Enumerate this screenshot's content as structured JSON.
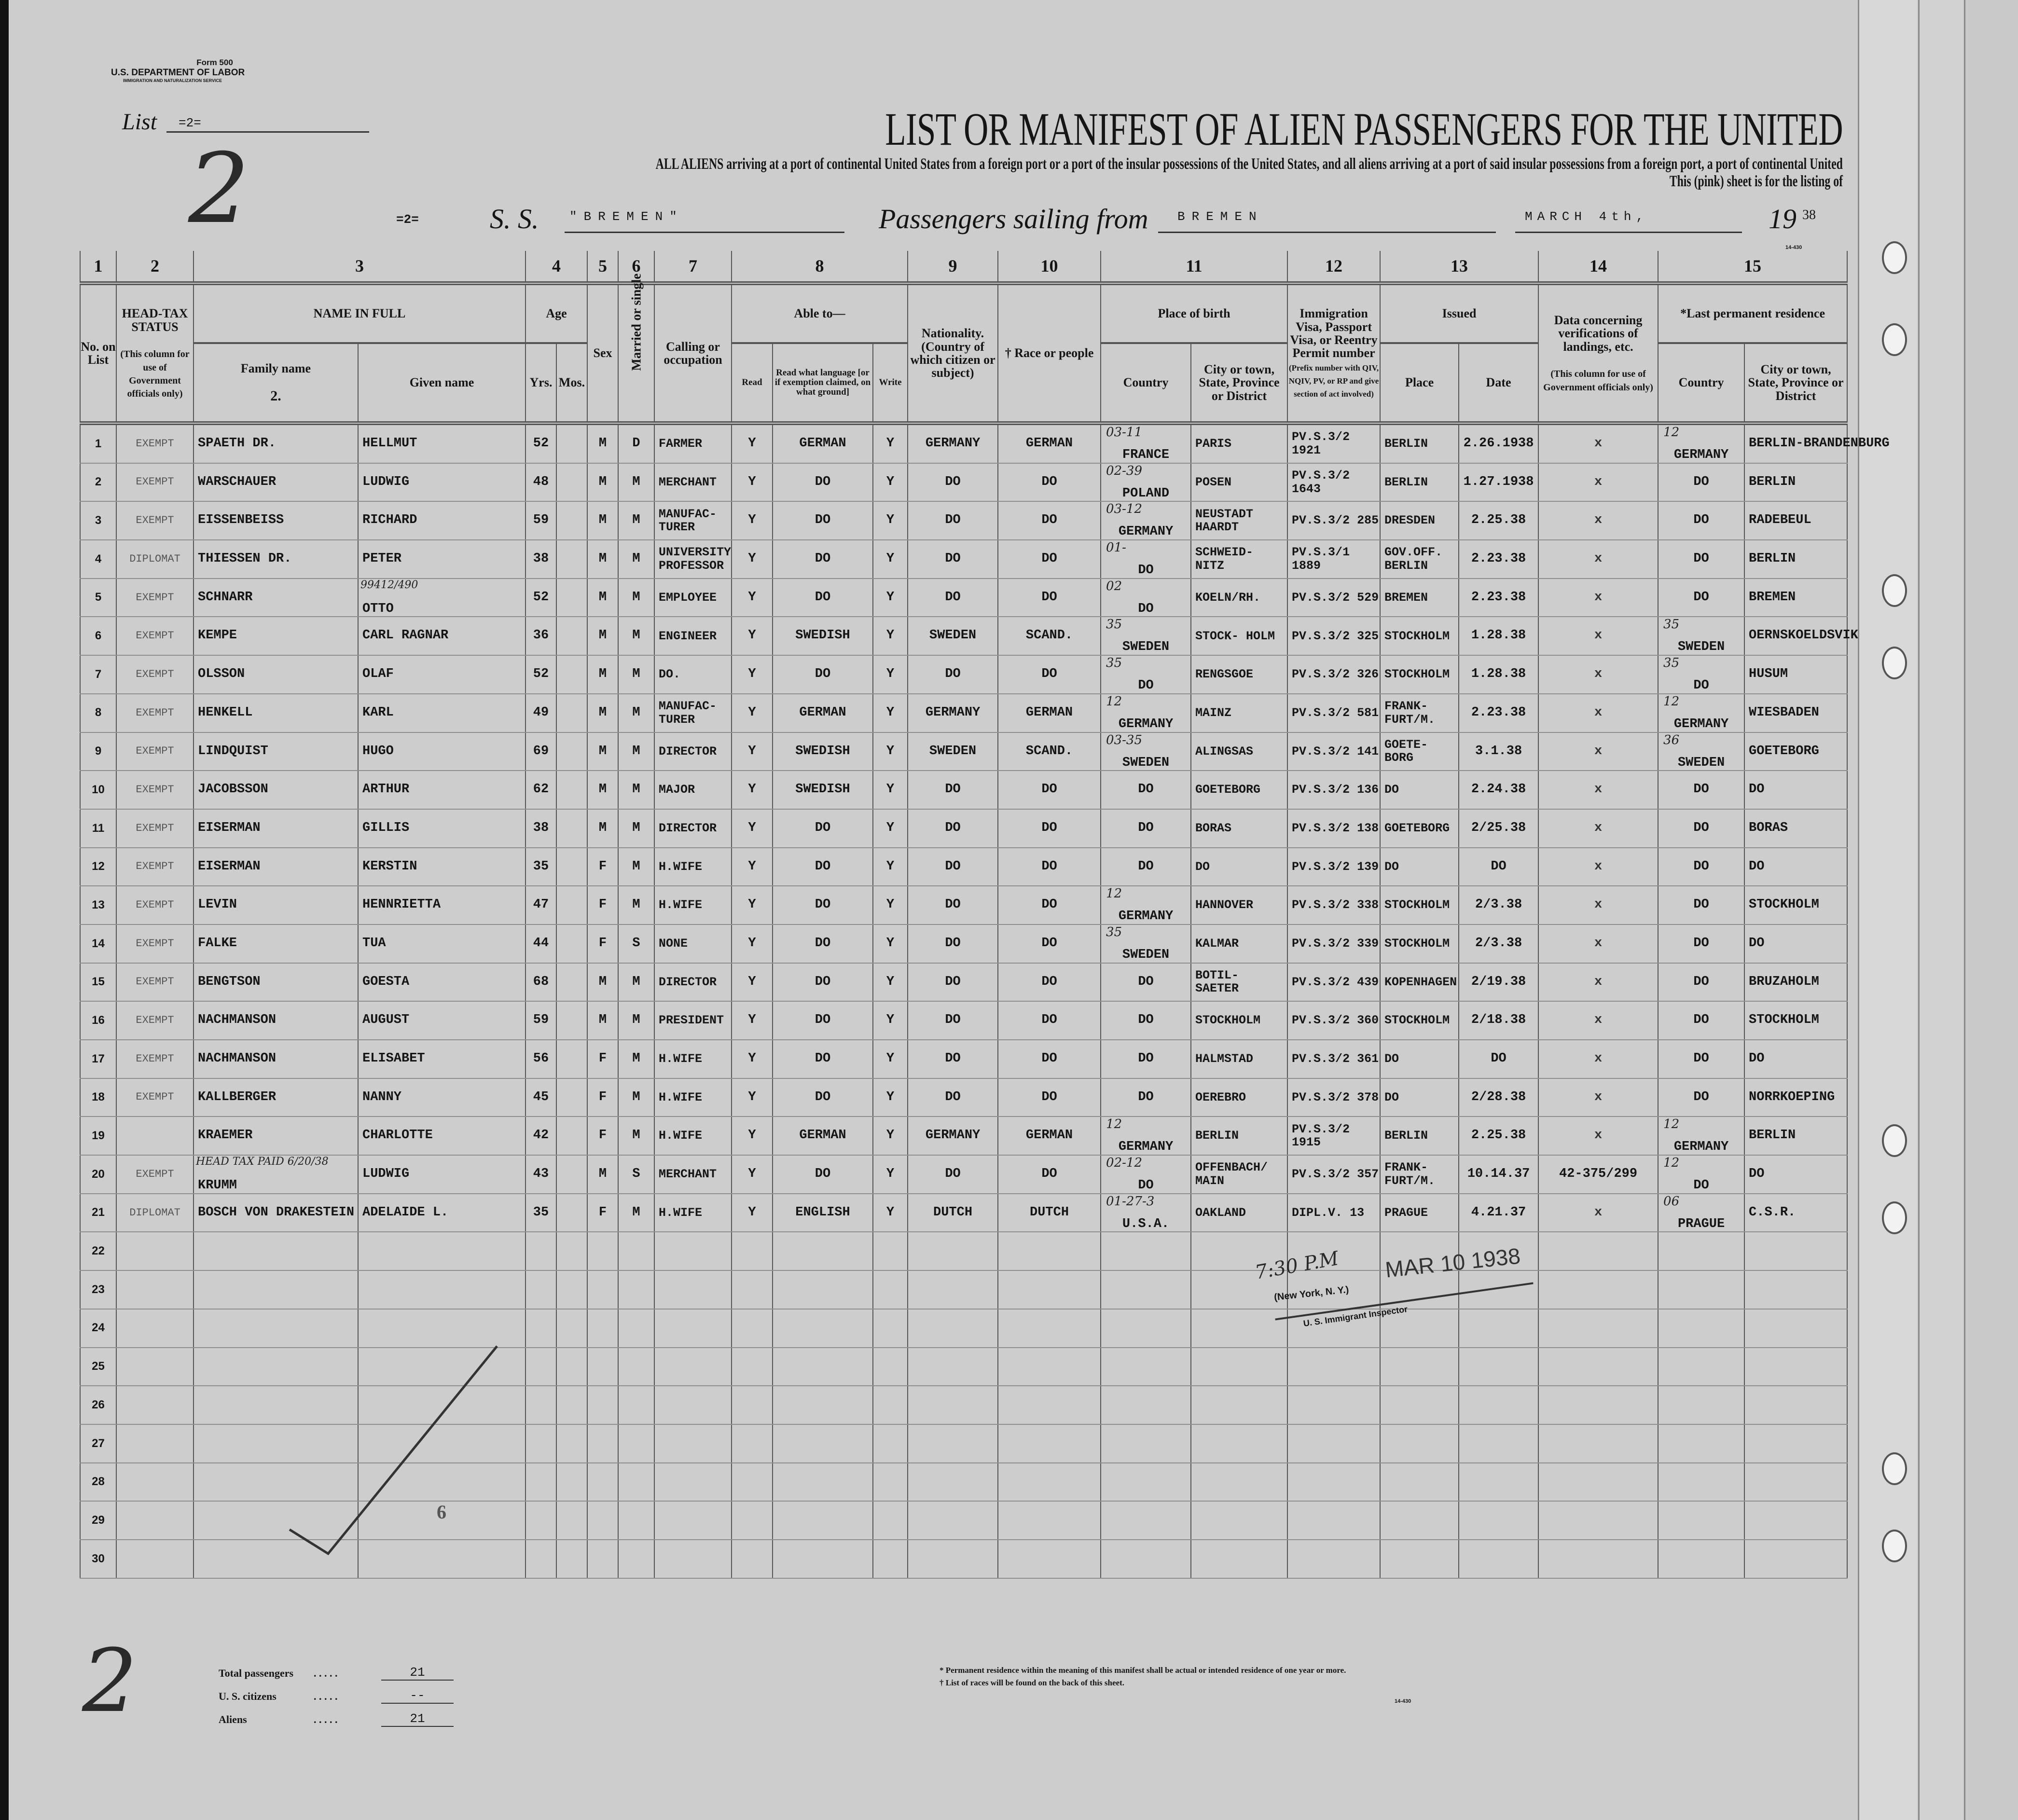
{
  "form": {
    "form_no": "Form 500",
    "department": "U.S. DEPARTMENT OF LABOR",
    "service": "IMMIGRATION AND NATURALIZATION SERVICE"
  },
  "list": {
    "label": "List",
    "value": "=2=",
    "handwritten": "2"
  },
  "title": "LIST OR MANIFEST OF ALIEN PASSENGERS FOR THE UNITED",
  "subtitle_line1": "ALL ALIENS arriving at a port of continental United States from a foreign port or a port of the insular possessions of the United States, and all aliens arriving at a port of said insular possessions from a foreign port, a port of continental United",
  "subtitle_line2": "This (pink) sheet is for the listing of",
  "voyage": {
    "sheet": "=2=",
    "ss_label": "S. S.",
    "ship": "\"BREMEN\"",
    "sailing_label": "Passengers sailing from",
    "port": "BREMEN",
    "date": "MARCH 4th,",
    "year_prefix": "19",
    "year_suffix": "38",
    "form_code": "14-430"
  },
  "columns": {
    "numbers": [
      "1",
      "2",
      "3",
      "4",
      "5",
      "6",
      "7",
      "8",
      "9",
      "10",
      "11",
      "12",
      "13",
      "14",
      "15"
    ],
    "no_on_list": "No. on List",
    "head_tax": "HEAD-TAX STATUS",
    "head_tax_note": "(This column for use of Government officials only)",
    "name_in_full": "NAME IN FULL",
    "family_name": "Family name",
    "family_name_sub": "2.",
    "given_name": "Given name",
    "age": "Age",
    "yrs": "Yrs.",
    "mos": "Mos.",
    "sex": "Sex",
    "married": "Married or single",
    "calling": "Calling or occupation",
    "able_to": "Able to—",
    "read": "Read",
    "read_language": "Read what language [or if exemption claimed, on what ground]",
    "write": "Write",
    "nationality": "Nationality. (Country of which citizen or subject)",
    "race": "† Race or people",
    "place_of_birth": "Place of birth",
    "country": "Country",
    "city": "City or town, State, Province or District",
    "visa": "Immigration Visa, Passport Visa, or Reentry Permit number",
    "visa_note": "(Prefix number with QIV, NQIV, PV, or RP and give section of act involved)",
    "issued": "Issued",
    "place": "Place",
    "date": "Date",
    "verification": "Data concerning verifications of landings, etc.",
    "verification_note": "(This column for use of Government officials only)",
    "last_residence": "*Last permanent residence",
    "res_country": "Country",
    "res_city": "City or town, State, Province or District"
  },
  "rows": [
    {
      "no": "1",
      "head_tax": "EXEMPT",
      "family": "SPAETH DR.",
      "given": "HELLMUT",
      "yrs": "52",
      "mos": "",
      "sex": "M",
      "married": "D",
      "calling": "FARMER",
      "read": "Y",
      "language": "GERMAN",
      "write": "Y",
      "nationality": "GERMANY",
      "race": "GERMAN",
      "birth_country": "FRANCE",
      "birth_city": "PARIS",
      "birth_code": "03-11",
      "visa": "PV.S.3/2 1921",
      "issued_place": "BERLIN",
      "issued_date": "2.26.1938",
      "verification": "x",
      "res_country": "GERMANY",
      "res_city": "BERLIN-BRANDENBURG",
      "res_code": "12"
    },
    {
      "no": "2",
      "head_tax": "EXEMPT",
      "family": "WARSCHAUER",
      "given": "LUDWIG",
      "yrs": "48",
      "mos": "",
      "sex": "M",
      "married": "M",
      "calling": "MERCHANT",
      "read": "Y",
      "language": "DO",
      "write": "Y",
      "nationality": "DO",
      "race": "DO",
      "birth_country": "POLAND",
      "birth_city": "POSEN",
      "birth_code": "02-39",
      "visa": "PV.S.3/2 1643",
      "issued_place": "BERLIN",
      "issued_date": "1.27.1938",
      "verification": "x",
      "res_country": "DO",
      "res_city": "BERLIN"
    },
    {
      "no": "3",
      "head_tax": "EXEMPT",
      "family": "EISSENBEISS",
      "given": "RICHARD",
      "yrs": "59",
      "mos": "",
      "sex": "M",
      "married": "M",
      "calling": "MANUFAC- TURER",
      "read": "Y",
      "language": "DO",
      "write": "Y",
      "nationality": "DO",
      "race": "DO",
      "birth_country": "GERMANY",
      "birth_city": "NEUSTADT HAARDT",
      "birth_code": "03-12",
      "visa": "PV.S.3/2 285",
      "issued_place": "DRESDEN",
      "issued_date": "2.25.38",
      "verification": "x",
      "res_country": "DO",
      "res_city": "RADEBEUL"
    },
    {
      "no": "4",
      "head_tax": "DIPLOMAT",
      "family": "THIESSEN DR.",
      "given": "PETER",
      "yrs": "38",
      "mos": "",
      "sex": "M",
      "married": "M",
      "calling": "UNIVERSITY PROFESSOR",
      "read": "Y",
      "language": "DO",
      "write": "Y",
      "nationality": "DO",
      "race": "DO",
      "birth_country": "DO",
      "birth_city": "SCHWEID- NITZ",
      "birth_code": "01-",
      "visa": "PV.S.3/1 1889",
      "issued_place": "GOV.OFF. BERLIN",
      "issued_date": "2.23.38",
      "verification": "x",
      "res_country": "DO",
      "res_city": "BERLIN"
    },
    {
      "no": "5",
      "head_tax": "EXEMPT",
      "family": "SCHNARR",
      "given": "OTTO",
      "given_note": "99412/490",
      "yrs": "52",
      "mos": "",
      "sex": "M",
      "married": "M",
      "calling": "EMPLOYEE",
      "read": "Y",
      "language": "DO",
      "write": "Y",
      "nationality": "DO",
      "race": "DO",
      "birth_country": "DO",
      "birth_city": "KOELN/RH.",
      "birth_code": "02",
      "visa": "PV.S.3/2 529",
      "issued_place": "BREMEN",
      "issued_date": "2.23.38",
      "verification": "x",
      "res_country": "DO",
      "res_city": "BREMEN"
    },
    {
      "no": "6",
      "head_tax": "EXEMPT",
      "family": "KEMPE",
      "given": "CARL RAGNAR",
      "yrs": "36",
      "mos": "",
      "sex": "M",
      "married": "M",
      "calling": "ENGINEER",
      "read": "Y",
      "language": "SWEDISH",
      "write": "Y",
      "nationality": "SWEDEN",
      "race": "SCAND.",
      "birth_country": "SWEDEN",
      "birth_city": "STOCK- HOLM",
      "birth_code": "35",
      "visa": "PV.S.3/2 325",
      "issued_place": "STOCKHOLM",
      "issued_date": "1.28.38",
      "verification": "x",
      "res_country": "SWEDEN",
      "res_city": "OERNSKOELDSVIK",
      "res_code": "35"
    },
    {
      "no": "7",
      "head_tax": "EXEMPT",
      "family": "OLSSON",
      "given": "OLAF",
      "yrs": "52",
      "mos": "",
      "sex": "M",
      "married": "M",
      "calling": "DO.",
      "read": "Y",
      "language": "DO",
      "write": "Y",
      "nationality": "DO",
      "race": "DO",
      "birth_country": "DO",
      "birth_city": "RENGSGOE",
      "birth_code": "35",
      "visa": "PV.S.3/2 326",
      "issued_place": "STOCKHOLM",
      "issued_date": "1.28.38",
      "verification": "x",
      "res_country": "DO",
      "res_city": "HUSUM",
      "res_code": "35"
    },
    {
      "no": "8",
      "head_tax": "EXEMPT",
      "family": "HENKELL",
      "given": "KARL",
      "yrs": "49",
      "mos": "",
      "sex": "M",
      "married": "M",
      "calling": "MANUFAC- TURER",
      "read": "Y",
      "language": "GERMAN",
      "write": "Y",
      "nationality": "GERMANY",
      "race": "GERMAN",
      "birth_country": "GERMANY",
      "birth_city": "MAINZ",
      "birth_code": "12",
      "visa": "PV.S.3/2 581",
      "issued_place": "FRANK- FURT/M.",
      "issued_date": "2.23.38",
      "verification": "x",
      "res_country": "GERMANY",
      "res_city": "WIESBADEN",
      "res_code": "12"
    },
    {
      "no": "9",
      "head_tax": "EXEMPT",
      "family": "LINDQUIST",
      "given": "HUGO",
      "yrs": "69",
      "mos": "",
      "sex": "M",
      "married": "M",
      "calling": "DIRECTOR",
      "read": "Y",
      "language": "SWEDISH",
      "write": "Y",
      "nationality": "SWEDEN",
      "race": "SCAND.",
      "birth_country": "SWEDEN",
      "birth_city": "ALINGSAS",
      "birth_code": "03-35",
      "visa": "PV.S.3/2 141",
      "issued_place": "GOETE- BORG",
      "issued_date": "3.1.38",
      "verification": "x",
      "res_country": "SWEDEN",
      "res_city": "GOETEBORG",
      "res_code": "36"
    },
    {
      "no": "10",
      "head_tax": "EXEMPT",
      "family": "JACOBSSON",
      "given": "ARTHUR",
      "yrs": "62",
      "mos": "",
      "sex": "M",
      "married": "M",
      "calling": "MAJOR",
      "read": "Y",
      "language": "SWEDISH",
      "write": "Y",
      "nationality": "DO",
      "race": "DO",
      "birth_country": "DO",
      "birth_city": "GOETEBORG",
      "visa": "PV.S.3/2 136",
      "issued_place": "DO",
      "issued_date": "2.24.38",
      "verification": "x",
      "res_country": "DO",
      "res_city": "DO"
    },
    {
      "no": "11",
      "head_tax": "EXEMPT",
      "family": "EISERMAN",
      "given": "GILLIS",
      "yrs": "38",
      "mos": "",
      "sex": "M",
      "married": "M",
      "calling": "DIRECTOR",
      "read": "Y",
      "language": "DO",
      "write": "Y",
      "nationality": "DO",
      "race": "DO",
      "birth_country": "DO",
      "birth_city": "BORAS",
      "visa": "PV.S.3/2 138",
      "issued_place": "GOETEBORG",
      "issued_date": "2/25.38",
      "verification": "x",
      "res_country": "DO",
      "res_city": "BORAS"
    },
    {
      "no": "12",
      "head_tax": "EXEMPT",
      "family": "EISERMAN",
      "given": "KERSTIN",
      "yrs": "35",
      "mos": "",
      "sex": "F",
      "married": "M",
      "calling": "H.WIFE",
      "read": "Y",
      "language": "DO",
      "write": "Y",
      "nationality": "DO",
      "race": "DO",
      "birth_country": "DO",
      "birth_city": "DO",
      "visa": "PV.S.3/2 139",
      "issued_place": "DO",
      "issued_date": "DO",
      "verification": "x",
      "res_country": "DO",
      "res_city": "DO"
    },
    {
      "no": "13",
      "head_tax": "EXEMPT",
      "family": "LEVIN",
      "given": "HENNRIETTA",
      "yrs": "47",
      "mos": "",
      "sex": "F",
      "married": "M",
      "calling": "H.WIFE",
      "read": "Y",
      "language": "DO",
      "write": "Y",
      "nationality": "DO",
      "race": "DO",
      "birth_country": "GERMANY",
      "birth_city": "HANNOVER",
      "birth_code": "12",
      "visa": "PV.S.3/2 338",
      "issued_place": "STOCKHOLM",
      "issued_date": "2/3.38",
      "verification": "x",
      "res_country": "DO",
      "res_city": "STOCKHOLM"
    },
    {
      "no": "14",
      "head_tax": "EXEMPT",
      "family": "FALKE",
      "given": "TUA",
      "yrs": "44",
      "mos": "",
      "sex": "F",
      "married": "S",
      "calling": "NONE",
      "read": "Y",
      "language": "DO",
      "write": "Y",
      "nationality": "DO",
      "race": "DO",
      "birth_country": "SWEDEN",
      "birth_city": "KALMAR",
      "birth_code": "35",
      "visa": "PV.S.3/2 339",
      "issued_place": "STOCKHOLM",
      "issued_date": "2/3.38",
      "verification": "x",
      "res_country": "DO",
      "res_city": "DO"
    },
    {
      "no": "15",
      "head_tax": "EXEMPT",
      "family": "BENGTSON",
      "given": "GOESTA",
      "yrs": "68",
      "mos": "",
      "sex": "M",
      "married": "M",
      "calling": "DIRECTOR",
      "read": "Y",
      "language": "DO",
      "write": "Y",
      "nationality": "DO",
      "race": "DO",
      "birth_country": "DO",
      "birth_city": "BOTIL- SAETER",
      "visa": "PV.S.3/2 439",
      "issued_place": "KOPENHAGEN",
      "issued_date": "2/19.38",
      "verification": "x",
      "res_country": "DO",
      "res_city": "BRUZAHOLM"
    },
    {
      "no": "16",
      "head_tax": "EXEMPT",
      "family": "NACHMANSON",
      "given": "AUGUST",
      "yrs": "59",
      "mos": "",
      "sex": "M",
      "married": "M",
      "calling": "PRESIDENT",
      "read": "Y",
      "language": "DO",
      "write": "Y",
      "nationality": "DO",
      "race": "DO",
      "birth_country": "DO",
      "birth_city": "STOCKHOLM",
      "visa": "PV.S.3/2 360",
      "issued_place": "STOCKHOLM",
      "issued_date": "2/18.38",
      "verification": "x",
      "res_country": "DO",
      "res_city": "STOCKHOLM"
    },
    {
      "no": "17",
      "head_tax": "EXEMPT",
      "family": "NACHMANSON",
      "given": "ELISABET",
      "yrs": "56",
      "mos": "",
      "sex": "F",
      "married": "M",
      "calling": "H.WIFE",
      "read": "Y",
      "language": "DO",
      "write": "Y",
      "nationality": "DO",
      "race": "DO",
      "birth_country": "DO",
      "birth_city": "HALMSTAD",
      "visa": "PV.S.3/2 361",
      "issued_place": "DO",
      "issued_date": "DO",
      "verification": "x",
      "res_country": "DO",
      "res_city": "DO"
    },
    {
      "no": "18",
      "head_tax": "EXEMPT",
      "family": "KALLBERGER",
      "given": "NANNY",
      "yrs": "45",
      "mos": "",
      "sex": "F",
      "married": "M",
      "calling": "H.WIFE",
      "read": "Y",
      "language": "DO",
      "write": "Y",
      "nationality": "DO",
      "race": "DO",
      "birth_country": "DO",
      "birth_city": "OEREBRO",
      "visa": "PV.S.3/2 378",
      "issued_place": "DO",
      "issued_date": "2/28.38",
      "verification": "x",
      "res_country": "DO",
      "res_city": "NORRKOEPING"
    },
    {
      "no": "19",
      "head_tax": "",
      "family": "KRAEMER",
      "given": "CHARLOTTE",
      "yrs": "42",
      "mos": "",
      "sex": "F",
      "married": "M",
      "calling": "H.WIFE",
      "read": "Y",
      "language": "GERMAN",
      "write": "Y",
      "nationality": "GERMANY",
      "race": "GERMAN",
      "birth_country": "GERMANY",
      "birth_city": "BERLIN",
      "birth_code": "12",
      "visa": "PV.S.3/2 1915",
      "issued_place": "BERLIN",
      "issued_date": "2.25.38",
      "verification": "x",
      "res_country": "GERMANY",
      "res_city": "BERLIN",
      "res_code": "12"
    },
    {
      "no": "20",
      "head_tax": "EXEMPT",
      "family": "KRUMM",
      "family_note": "HEAD TAX PAID 6/20/38",
      "given": "LUDWIG",
      "yrs": "43",
      "mos": "",
      "sex": "M",
      "married": "S",
      "calling": "MERCHANT",
      "read": "Y",
      "language": "DO",
      "write": "Y",
      "nationality": "DO",
      "race": "DO",
      "birth_country": "DO",
      "birth_city": "OFFENBACH/ MAIN",
      "birth_code": "02-12",
      "visa": "PV.S.3/2 357",
      "issued_place": "FRANK- FURT/M.",
      "issued_date": "10.14.37",
      "verification": "42-375/299",
      "res_country": "DO",
      "res_city": "DO",
      "res_code": "12"
    },
    {
      "no": "21",
      "head_tax": "DIPLOMAT",
      "family": "BOSCH VON DRAKESTEIN",
      "given": "ADELAIDE L.",
      "yrs": "35",
      "mos": "",
      "sex": "F",
      "married": "M",
      "calling": "H.WIFE",
      "read": "Y",
      "language": "ENGLISH",
      "write": "Y",
      "nationality": "DUTCH",
      "race": "DUTCH",
      "birth_country": "U.S.A.",
      "birth_city": "OAKLAND",
      "birth_code": "01-27-3",
      "visa": "DIPL.V. 13",
      "issued_place": "PRAGUE",
      "issued_date": "4.21.37",
      "verification": "x",
      "res_country": "PRAGUE",
      "res_city": "C.S.R.",
      "res_code": "06"
    }
  ],
  "empty_row_numbers": [
    "22",
    "23",
    "24",
    "25",
    "26",
    "27",
    "28",
    "29",
    "30"
  ],
  "page_number": "6",
  "stamp": {
    "time": "7:30 P.M",
    "date": "MAR 10 1938",
    "place": "(New York, N. Y.)",
    "title": "U. S. Immigrant Inspector"
  },
  "totals": [
    {
      "label": "Total passengers",
      "value": "21"
    },
    {
      "label": "U. S. citizens",
      "value": "--"
    },
    {
      "label": "Aliens",
      "value": "21"
    }
  ],
  "footnotes": [
    "* Permanent residence within the meaning of this manifest shall be actual or intended residence of one year or more.",
    "† List of races will be found on the back of this sheet."
  ],
  "footer_code": "14-430",
  "colors": {
    "paper": "#cdcdcd",
    "ink": "#151515",
    "rule": "#555555"
  }
}
